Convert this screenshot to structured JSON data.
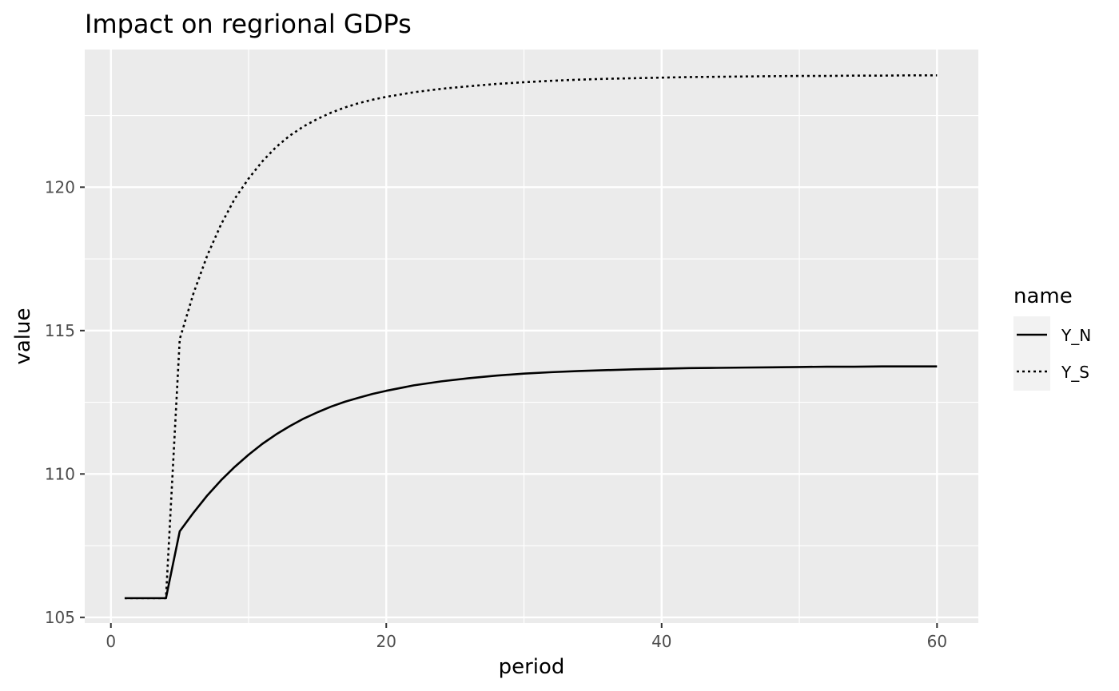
{
  "chart_data": {
    "type": "line",
    "title": "Impact on regrional GDPs",
    "xlabel": "period",
    "ylabel": "value",
    "xlim": [
      -1.9,
      63.0
    ],
    "ylim": [
      104.8,
      124.8
    ],
    "x_ticks": [
      0,
      20,
      40,
      60
    ],
    "x_minor_ticks": [
      10,
      30,
      50
    ],
    "y_ticks": [
      105,
      110,
      115,
      120
    ],
    "y_minor_ticks": [
      107.5,
      112.5,
      117.5,
      122.5
    ],
    "x_tick_labels": [
      "0",
      "20",
      "40",
      "60"
    ],
    "y_tick_labels": [
      "105",
      "110",
      "115",
      "120"
    ],
    "grid": true,
    "panel_background": "#ebebeb",
    "legend": {
      "title": "name",
      "position": "right",
      "entries": [
        "Y_N",
        "Y_S"
      ]
    },
    "series": [
      {
        "name": "Y_N",
        "line_style": "solid",
        "color": "#000000",
        "x": [
          1,
          2,
          3,
          4,
          5,
          6,
          7,
          8,
          9,
          10,
          11,
          12,
          13,
          14,
          15,
          16,
          17,
          18,
          19,
          20,
          22,
          24,
          26,
          28,
          30,
          32,
          34,
          36,
          38,
          40,
          42,
          44,
          46,
          48,
          50,
          52,
          54,
          56,
          58,
          60
        ],
        "values": [
          105.67,
          105.67,
          105.67,
          105.67,
          108.0,
          108.65,
          109.25,
          109.78,
          110.25,
          110.67,
          111.05,
          111.38,
          111.67,
          111.93,
          112.15,
          112.35,
          112.52,
          112.66,
          112.79,
          112.9,
          113.09,
          113.23,
          113.34,
          113.43,
          113.5,
          113.55,
          113.59,
          113.62,
          113.65,
          113.67,
          113.69,
          113.7,
          113.71,
          113.72,
          113.73,
          113.74,
          113.74,
          113.75,
          113.75,
          113.75
        ]
      },
      {
        "name": "Y_S",
        "line_style": "dashed",
        "color": "#000000",
        "x": [
          1,
          2,
          3,
          4,
          5,
          6,
          7,
          8,
          9,
          10,
          11,
          12,
          13,
          14,
          15,
          16,
          17,
          18,
          19,
          20,
          22,
          24,
          26,
          28,
          30,
          32,
          34,
          36,
          38,
          40,
          42,
          44,
          46,
          48,
          50,
          52,
          54,
          56,
          58,
          60
        ],
        "values": [
          105.67,
          105.67,
          105.67,
          105.67,
          114.7,
          116.3,
          117.62,
          118.7,
          119.6,
          120.3,
          120.9,
          121.4,
          121.8,
          122.12,
          122.38,
          122.6,
          122.78,
          122.93,
          123.05,
          123.15,
          123.31,
          123.43,
          123.52,
          123.6,
          123.66,
          123.71,
          123.75,
          123.78,
          123.8,
          123.82,
          123.84,
          123.85,
          123.86,
          123.87,
          123.88,
          123.88,
          123.89,
          123.89,
          123.9,
          123.9
        ]
      }
    ]
  }
}
